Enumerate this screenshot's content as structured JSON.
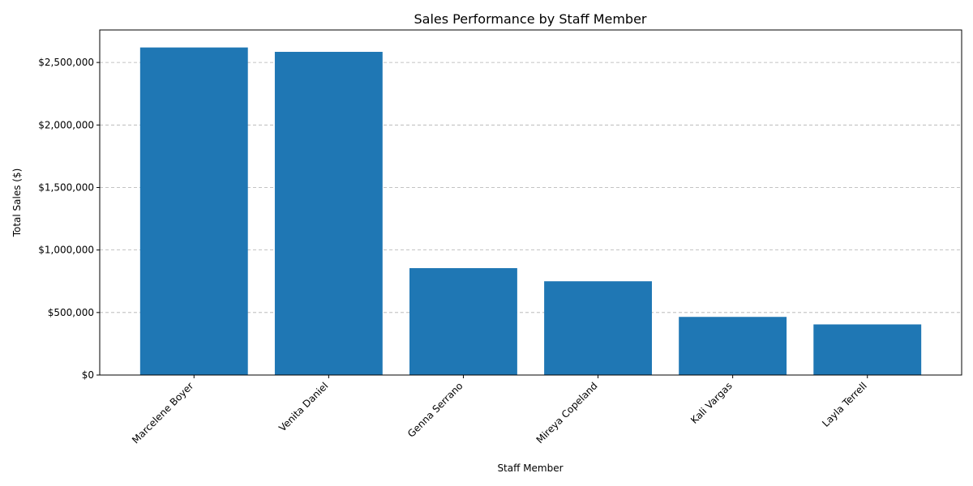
{
  "chart_data": {
    "type": "bar",
    "title": "Sales Performance by Staff Member",
    "xlabel": "Staff Member",
    "ylabel": "Total Sales ($)",
    "categories": [
      "Marcelene Boyer",
      "Venita Daniel",
      "Genna Serrano",
      "Mireya Copeland",
      "Kali Vargas",
      "Layla Terrell"
    ],
    "values": [
      2620000,
      2585000,
      855000,
      750000,
      465000,
      405000
    ],
    "ylim": [
      0,
      2760000
    ],
    "yticks": [
      0,
      500000,
      1000000,
      1500000,
      2000000,
      2500000
    ],
    "ytick_labels": [
      "$0",
      "$500,000",
      "$1,000,000",
      "$1,500,000",
      "$2,000,000",
      "$2,500,000"
    ],
    "grid": "y-dashed",
    "bar_color": "#1f77b4"
  }
}
